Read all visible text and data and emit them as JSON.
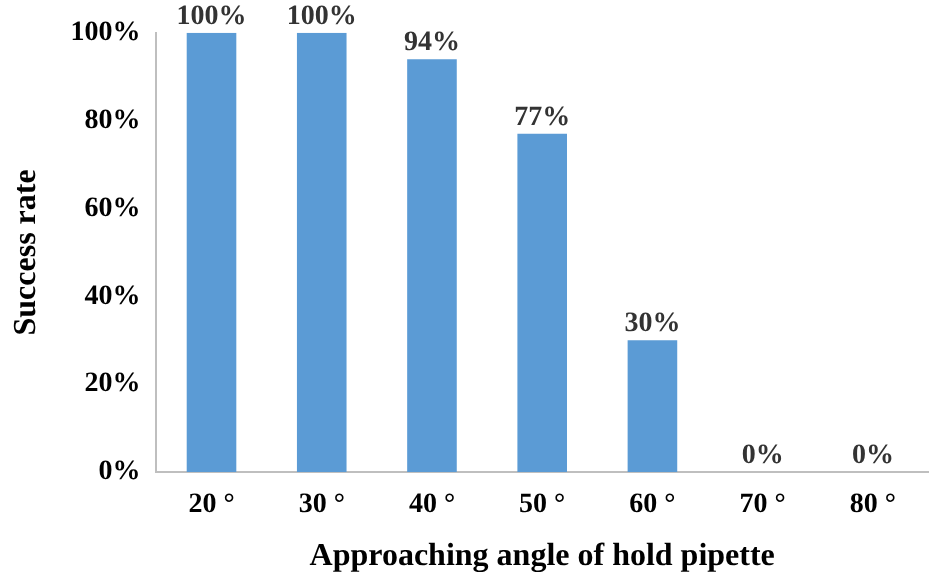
{
  "chart_data": {
    "type": "bar",
    "xlabel": "Approaching angle of hold pipette",
    "ylabel": "Success rate",
    "categories": [
      "20 °",
      "30 °",
      "40 °",
      "50 °",
      "60 °",
      "70 °",
      "80 °"
    ],
    "values": [
      100,
      100,
      94,
      77,
      30,
      0,
      0
    ],
    "value_labels": [
      "100%",
      "100%",
      "94%",
      "77%",
      "30%",
      "0%",
      "0%"
    ],
    "color": "#5b9bd5",
    "ylim": [
      0,
      100
    ],
    "yticks": [
      {
        "value": 0,
        "label": "0%"
      },
      {
        "value": 20,
        "label": "20%"
      },
      {
        "value": 40,
        "label": "40%"
      },
      {
        "value": 60,
        "label": "60%"
      },
      {
        "value": 80,
        "label": "80%"
      },
      {
        "value": 100,
        "label": "100%"
      }
    ],
    "grid": false,
    "legend": false
  }
}
